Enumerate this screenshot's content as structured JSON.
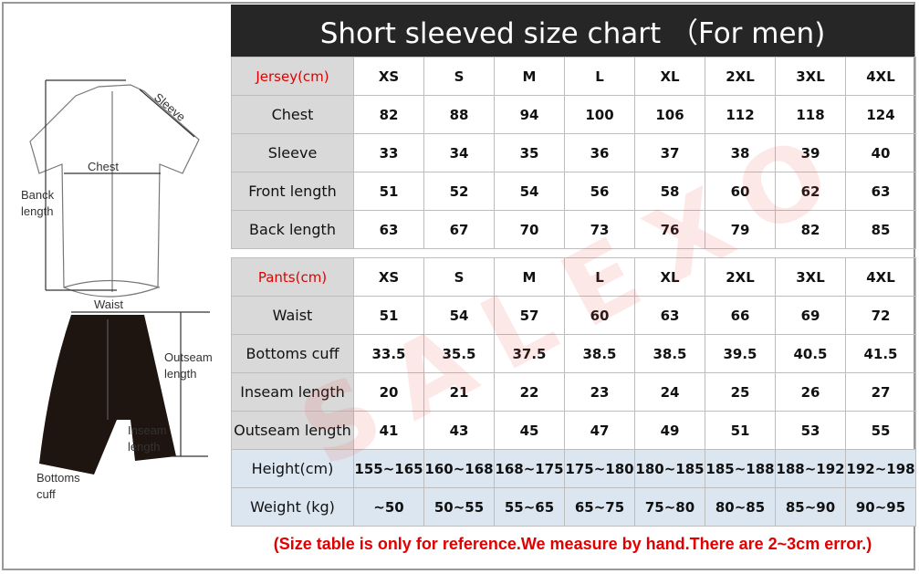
{
  "title": "Short sleeved size chart （For men)",
  "sizes": [
    "XS",
    "S",
    "M",
    "L",
    "XL",
    "2XL",
    "3XL",
    "4XL"
  ],
  "jersey": {
    "header": "Jersey(cm)",
    "rows": [
      {
        "label": "Chest",
        "values": [
          "82",
          "88",
          "94",
          "100",
          "106",
          "112",
          "118",
          "124"
        ]
      },
      {
        "label": "Sleeve",
        "values": [
          "33",
          "34",
          "35",
          "36",
          "37",
          "38",
          "39",
          "40"
        ]
      },
      {
        "label": "Front length",
        "values": [
          "51",
          "52",
          "54",
          "56",
          "58",
          "60",
          "62",
          "63"
        ]
      },
      {
        "label": "Back length",
        "values": [
          "63",
          "67",
          "70",
          "73",
          "76",
          "79",
          "82",
          "85"
        ]
      }
    ]
  },
  "pants": {
    "header": "Pants(cm)",
    "rows": [
      {
        "label": "Waist",
        "values": [
          "51",
          "54",
          "57",
          "60",
          "63",
          "66",
          "69",
          "72"
        ]
      },
      {
        "label": "Bottoms cuff",
        "values": [
          "33.5",
          "35.5",
          "37.5",
          "38.5",
          "38.5",
          "39.5",
          "40.5",
          "41.5"
        ]
      },
      {
        "label": "Inseam length",
        "values": [
          "20",
          "21",
          "22",
          "23",
          "24",
          "25",
          "26",
          "27"
        ]
      },
      {
        "label": "Outseam length",
        "values": [
          "41",
          "43",
          "45",
          "47",
          "49",
          "51",
          "53",
          "55"
        ]
      }
    ]
  },
  "body": [
    {
      "label": "Height(cm)",
      "values": [
        "155~165",
        "160~168",
        "168~175",
        "175~180",
        "180~185",
        "185~188",
        "188~192",
        "192~198"
      ]
    },
    {
      "label": "Weight (kg)",
      "values": [
        "~50",
        "50~55",
        "55~65",
        "65~75",
        "75~80",
        "80~85",
        "85~90",
        "90~95"
      ]
    }
  ],
  "note": "(Size table is only for reference.We measure by hand.There are 2~3cm error.)",
  "diagram": {
    "sleeve": "Sleeve",
    "chest": "Chest",
    "back1": "Banck",
    "back2": "length",
    "waist": "Waist",
    "out1": "Outseam",
    "out2": "length",
    "in1": "Inseam",
    "in2": "length",
    "cuff1": "Bottoms",
    "cuff2": "cuff"
  },
  "watermark": "SALEXO"
}
